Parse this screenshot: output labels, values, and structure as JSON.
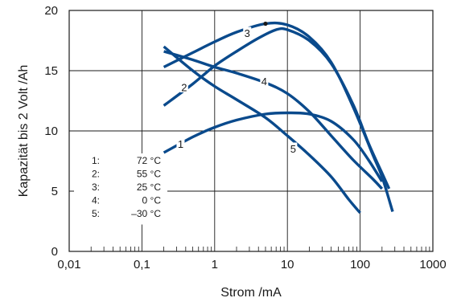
{
  "chart_data": {
    "type": "line",
    "x_scale": "log",
    "xlabel": "Strom /mA",
    "ylabel": "Kapazität bis 2 Volt /Ah",
    "xlim": [
      0.01,
      1000
    ],
    "ylim": [
      0,
      20
    ],
    "x_ticks": [
      {
        "value": 0.01,
        "label": "0,01"
      },
      {
        "value": 0.1,
        "label": "0,1"
      },
      {
        "value": 1,
        "label": "1"
      },
      {
        "value": 10,
        "label": "10"
      },
      {
        "value": 100,
        "label": "100"
      },
      {
        "value": 1000,
        "label": "1000"
      }
    ],
    "y_ticks": [
      {
        "value": 0,
        "label": "0"
      },
      {
        "value": 5,
        "label": "5"
      },
      {
        "value": 10,
        "label": "10"
      },
      {
        "value": 15,
        "label": "15"
      },
      {
        "value": 20,
        "label": "20"
      }
    ],
    "grid": true,
    "line_color": "#0a4a8c",
    "series": [
      {
        "label": "1",
        "label_at": [
          0.34,
          8.9
        ],
        "points": [
          [
            0.2,
            8.2
          ],
          [
            0.5,
            9.5
          ],
          [
            1,
            10.3
          ],
          [
            2,
            10.9
          ],
          [
            5,
            11.4
          ],
          [
            10,
            11.5
          ],
          [
            20,
            11.4
          ],
          [
            40,
            10.8
          ],
          [
            80,
            9.3
          ],
          [
            130,
            7.6
          ],
          [
            200,
            5.8
          ]
        ]
      },
      {
        "label": "2",
        "label_at": [
          0.38,
          13.6
        ],
        "points": [
          [
            0.2,
            12.1
          ],
          [
            0.5,
            13.9
          ],
          [
            1,
            15.4
          ],
          [
            2,
            16.6
          ],
          [
            4,
            17.7
          ],
          [
            7,
            18.4
          ],
          [
            10,
            18.4
          ],
          [
            20,
            17.5
          ],
          [
            40,
            15.6
          ],
          [
            80,
            12.2
          ],
          [
            130,
            9.0
          ],
          [
            200,
            6.5
          ],
          [
            250,
            5.2
          ]
        ]
      },
      {
        "label": "3",
        "label_at": [
          2.8,
          18.1
        ],
        "points": [
          [
            0.2,
            15.3
          ],
          [
            0.5,
            16.5
          ],
          [
            1,
            17.4
          ],
          [
            2,
            18.2
          ],
          [
            5,
            18.9
          ],
          [
            10,
            18.8
          ],
          [
            20,
            17.8
          ],
          [
            40,
            15.7
          ],
          [
            80,
            12.0
          ],
          [
            150,
            8.0
          ],
          [
            200,
            6.2
          ],
          [
            280,
            3.3
          ]
        ]
      },
      {
        "label": "4",
        "label_at": [
          4.8,
          14.1
        ],
        "points": [
          [
            0.2,
            16.6
          ],
          [
            0.5,
            15.9
          ],
          [
            1,
            15.3
          ],
          [
            2,
            14.8
          ],
          [
            5,
            14.0
          ],
          [
            10,
            13.1
          ],
          [
            20,
            11.6
          ],
          [
            40,
            9.6
          ],
          [
            80,
            7.6
          ],
          [
            150,
            6.0
          ],
          [
            200,
            5.2
          ]
        ]
      },
      {
        "label": "5",
        "label_at": [
          12,
          8.5
        ],
        "points": [
          [
            0.2,
            17.0
          ],
          [
            0.5,
            15.0
          ],
          [
            1,
            13.7
          ],
          [
            2,
            12.6
          ],
          [
            5,
            11.1
          ],
          [
            10,
            9.6
          ],
          [
            20,
            8.0
          ],
          [
            40,
            6.2
          ],
          [
            70,
            4.3
          ],
          [
            100,
            3.2
          ]
        ]
      }
    ],
    "marker": {
      "x": 5,
      "y": 18.9
    },
    "legend": {
      "placement": "bottom-left",
      "entries": [
        {
          "key": "1:",
          "value": "72 °C"
        },
        {
          "key": "2:",
          "value": "55 °C"
        },
        {
          "key": "3:",
          "value": "25 °C"
        },
        {
          "key": "4:",
          "value": "0 °C"
        },
        {
          "key": "5:",
          "value": "–30 °C"
        }
      ]
    }
  }
}
